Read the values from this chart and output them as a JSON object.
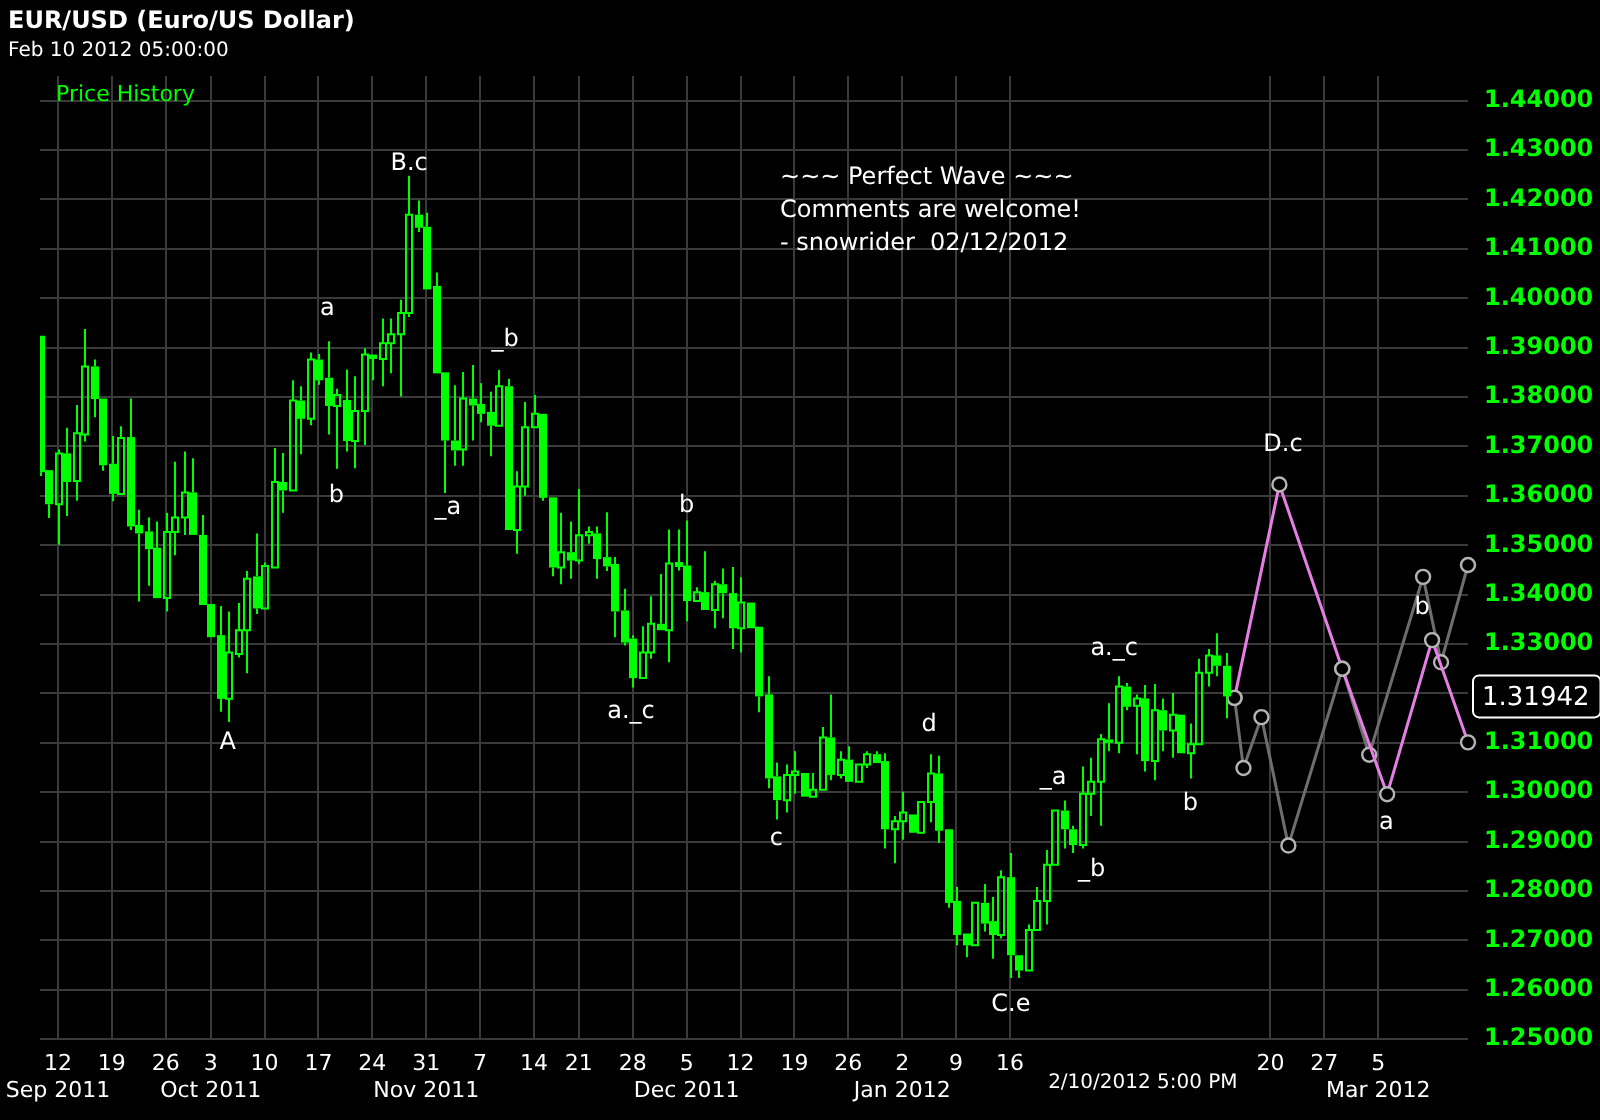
{
  "chart_data": {
    "type": "candlestick",
    "title": "EUR/USD (Euro/US Dollar)",
    "subtitle": "Feb 10 2012 05:00:00",
    "categories": [
      null,
      null,
      "12\nSep 2011",
      null,
      null,
      null,
      null,
      null,
      "19",
      null,
      null,
      null,
      null,
      null,
      "26",
      null,
      null,
      null,
      null,
      "3\nOct 2011",
      null,
      null,
      null,
      null,
      null,
      "10",
      null,
      null,
      null,
      null,
      null,
      "17",
      null,
      null,
      null,
      null,
      null,
      "24",
      null,
      null,
      null,
      null,
      null,
      "31\nNov 2011",
      null,
      null,
      null,
      null,
      null,
      "7",
      null,
      null,
      null,
      null,
      null,
      "14",
      null,
      null,
      null,
      null,
      "21",
      null,
      null,
      null,
      null,
      null,
      "28",
      null,
      null,
      null,
      null,
      null,
      "5\nDec 2011",
      null,
      null,
      null,
      null,
      null,
      "12",
      null,
      null,
      null,
      null,
      null,
      "19",
      null,
      null,
      null,
      null,
      null,
      "26",
      null,
      null,
      null,
      null,
      null,
      "2\nJan 2012",
      null,
      null,
      null,
      null,
      null,
      "9",
      null,
      null,
      null,
      null,
      null,
      "16",
      null,
      null,
      null,
      null,
      null,
      null,
      null,
      null,
      null,
      null,
      null,
      null,
      null,
      null,
      null,
      null,
      null,
      null,
      null,
      null,
      null,
      null,
      null,
      null,
      null,
      null,
      null,
      null,
      "20",
      null,
      null,
      null,
      null,
      null,
      "27",
      null,
      null,
      null,
      null,
      null,
      "5\nMar 2012",
      null,
      null,
      null,
      null,
      null,
      null,
      null,
      null,
      null,
      null
    ],
    "series": [
      {
        "name": "Price History",
        "color": "#00ff00",
        "ohlc": [
          [
            1.3924,
            1.3924,
            1.364,
            1.3648
          ],
          [
            1.3652,
            1.3652,
            1.3555,
            1.3583
          ],
          [
            1.3583,
            1.3694,
            1.3501,
            1.3686
          ],
          [
            1.3686,
            1.3738,
            1.3559,
            1.3628
          ],
          [
            1.363,
            1.3784,
            1.359,
            1.3727
          ],
          [
            1.3724,
            1.3938,
            1.371,
            1.3862
          ],
          [
            1.3862,
            1.3876,
            1.3759,
            1.3796
          ],
          [
            1.3797,
            1.3797,
            1.3651,
            1.3662
          ],
          [
            1.3665,
            1.3721,
            1.3589,
            1.3604
          ],
          [
            1.3604,
            1.3741,
            1.36,
            1.3717
          ],
          [
            1.3719,
            1.3797,
            1.3531,
            1.3538
          ],
          [
            1.3541,
            1.3572,
            1.3386,
            1.3524
          ],
          [
            1.3528,
            1.3556,
            1.3418,
            1.3492
          ],
          [
            1.3495,
            1.3548,
            1.3393,
            1.3393
          ],
          [
            1.3393,
            1.3566,
            1.3366,
            1.3527
          ],
          [
            1.3527,
            1.3669,
            1.348,
            1.3556
          ],
          [
            1.3556,
            1.369,
            1.3521,
            1.3607
          ],
          [
            1.3607,
            1.3676,
            1.3521,
            1.3521
          ],
          [
            1.3521,
            1.3561,
            1.3377,
            1.3379
          ],
          [
            1.3381,
            1.3383,
            1.3314,
            1.3314
          ],
          [
            1.3318,
            1.3377,
            1.3163,
            1.3189
          ],
          [
            1.3189,
            1.3366,
            1.3142,
            1.3283
          ],
          [
            1.328,
            1.3383,
            1.3273,
            1.3328
          ],
          [
            1.3328,
            1.3448,
            1.3241,
            1.3432
          ],
          [
            1.3437,
            1.3524,
            1.3361,
            1.3372
          ],
          [
            1.3372,
            1.3465,
            1.3372,
            1.3458
          ],
          [
            1.3455,
            1.3697,
            1.3455,
            1.3628
          ],
          [
            1.3628,
            1.3687,
            1.3566,
            1.3611
          ],
          [
            1.3611,
            1.3834,
            1.3611,
            1.3793
          ],
          [
            1.3793,
            1.3822,
            1.3684,
            1.3756
          ],
          [
            1.3756,
            1.389,
            1.3743,
            1.3876
          ],
          [
            1.3876,
            1.3887,
            1.3825,
            1.3834
          ],
          [
            1.3839,
            1.3913,
            1.3724,
            1.3782
          ],
          [
            1.3782,
            1.3817,
            1.3655,
            1.3804
          ],
          [
            1.3794,
            1.3856,
            1.369,
            1.3711
          ],
          [
            1.3711,
            1.3842,
            1.3656,
            1.3772
          ],
          [
            1.3772,
            1.3899,
            1.3703,
            1.3886
          ],
          [
            1.3886,
            1.389,
            1.3834,
            1.3877
          ],
          [
            1.3877,
            1.3959,
            1.3822,
            1.3909
          ],
          [
            1.3909,
            1.3959,
            1.3848,
            1.3927
          ],
          [
            1.3927,
            1.3997,
            1.3801,
            1.397
          ],
          [
            1.397,
            1.4248,
            1.3962,
            1.4169
          ],
          [
            1.4169,
            1.4198,
            1.4134,
            1.4143
          ],
          [
            1.4145,
            1.4173,
            1.4018,
            1.4018
          ],
          [
            1.4025,
            1.4052,
            1.3848,
            1.3848
          ],
          [
            1.385,
            1.385,
            1.3606,
            1.3712
          ],
          [
            1.3712,
            1.3824,
            1.3661,
            1.3692
          ],
          [
            1.3694,
            1.3851,
            1.3661,
            1.3797
          ],
          [
            1.3797,
            1.3865,
            1.3712,
            1.3783
          ],
          [
            1.3786,
            1.3828,
            1.3749,
            1.3766
          ],
          [
            1.377,
            1.3811,
            1.368,
            1.3742
          ],
          [
            1.3742,
            1.3855,
            1.3742,
            1.3822
          ],
          [
            1.3822,
            1.3837,
            1.3531,
            1.3531
          ],
          [
            1.3531,
            1.365,
            1.3483,
            1.3619
          ],
          [
            1.3619,
            1.379,
            1.36,
            1.3739
          ],
          [
            1.3739,
            1.3804,
            1.3735,
            1.3766
          ],
          [
            1.3766,
            1.377,
            1.359,
            1.3596
          ],
          [
            1.3597,
            1.3597,
            1.3437,
            1.3455
          ],
          [
            1.3455,
            1.3566,
            1.3421,
            1.3486
          ],
          [
            1.3486,
            1.3548,
            1.3432,
            1.3469
          ],
          [
            1.3469,
            1.3614,
            1.3462,
            1.352
          ],
          [
            1.352,
            1.3538,
            1.3503,
            1.3527
          ],
          [
            1.3524,
            1.3538,
            1.3432,
            1.3472
          ],
          [
            1.3476,
            1.3567,
            1.3448,
            1.3457
          ],
          [
            1.3462,
            1.3476,
            1.3314,
            1.3366
          ],
          [
            1.3368,
            1.3412,
            1.3297,
            1.3303
          ],
          [
            1.3311,
            1.3318,
            1.3212,
            1.3231
          ],
          [
            1.3231,
            1.3336,
            1.3231,
            1.3283
          ],
          [
            1.3283,
            1.3397,
            1.327,
            1.3341
          ],
          [
            1.3341,
            1.3442,
            1.3328,
            1.3328
          ],
          [
            1.3328,
            1.3532,
            1.3263,
            1.3463
          ],
          [
            1.3466,
            1.3532,
            1.3449,
            1.3456
          ],
          [
            1.3459,
            1.355,
            1.3346,
            1.3387
          ],
          [
            1.3387,
            1.3415,
            1.3383,
            1.3405
          ],
          [
            1.3405,
            1.3488,
            1.3366,
            1.3369
          ],
          [
            1.3369,
            1.3428,
            1.3332,
            1.3421
          ],
          [
            1.3421,
            1.3453,
            1.3352,
            1.3403
          ],
          [
            1.3403,
            1.3456,
            1.329,
            1.3332
          ],
          [
            1.3332,
            1.3435,
            1.3283,
            1.3384
          ],
          [
            1.3384,
            1.3384,
            1.3332,
            1.3332
          ],
          [
            1.3335,
            1.3335,
            1.3162,
            1.3194
          ],
          [
            1.3198,
            1.3235,
            1.3008,
            1.3028
          ],
          [
            1.3032,
            1.306,
            1.2945,
            1.2984
          ],
          [
            1.2984,
            1.3056,
            1.2959,
            1.3035
          ],
          [
            1.3035,
            1.3083,
            1.2997,
            1.3042
          ],
          [
            1.3039,
            1.3039,
            1.2987,
            1.2991
          ],
          [
            1.2991,
            1.3039,
            1.2991,
            1.3005
          ],
          [
            1.3005,
            1.3132,
            1.3005,
            1.3111
          ],
          [
            1.3111,
            1.3198,
            1.3024,
            1.3035
          ],
          [
            1.3035,
            1.3083,
            1.3028,
            1.3066
          ],
          [
            1.3066,
            1.3093,
            1.3021,
            1.3021
          ],
          [
            1.3021,
            1.3059,
            1.3021,
            1.3056
          ],
          [
            1.3056,
            1.3083,
            1.3049,
            1.3077
          ],
          [
            1.3077,
            1.3083,
            1.3056,
            1.3059
          ],
          [
            1.3063,
            1.3079,
            1.2886,
            1.2925
          ],
          [
            1.2925,
            1.2952,
            1.2856,
            1.2941
          ],
          [
            1.2941,
            1.3001,
            1.2904,
            1.2959
          ],
          [
            1.2955,
            1.2959,
            1.2918,
            1.2918
          ],
          [
            1.2918,
            1.298,
            1.2918,
            1.298
          ],
          [
            1.298,
            1.3077,
            1.2939,
            1.3038
          ],
          [
            1.3038,
            1.3074,
            1.2897,
            1.2922
          ],
          [
            1.2925,
            1.2925,
            1.2766,
            1.2776
          ],
          [
            1.278,
            1.2808,
            1.269,
            1.2711
          ],
          [
            1.2714,
            1.2714,
            1.2666,
            1.269
          ],
          [
            1.269,
            1.278,
            1.269,
            1.2776
          ],
          [
            1.2776,
            1.2814,
            1.2718,
            1.2734
          ],
          [
            1.2739,
            1.2788,
            1.2663,
            1.2711
          ],
          [
            1.2711,
            1.2842,
            1.2704,
            1.2828
          ],
          [
            1.2828,
            1.2877,
            1.2624,
            1.267
          ],
          [
            1.267,
            1.2672,
            1.2624,
            1.2639
          ],
          [
            1.2639,
            1.2732,
            1.2635,
            1.2721
          ],
          [
            1.2721,
            1.2808,
            1.2718,
            1.278
          ],
          [
            1.278,
            1.2883,
            1.2732,
            1.2853
          ],
          [
            1.2853,
            1.2966,
            1.2849,
            1.2963
          ],
          [
            1.2963,
            1.2983,
            1.2886,
            1.2925
          ],
          [
            1.2925,
            1.2932,
            1.2877,
            1.2893
          ],
          [
            1.2893,
            1.3052,
            1.2886,
            1.2997
          ],
          [
            1.2997,
            1.307,
            1.2952,
            1.3021
          ],
          [
            1.3021,
            1.3118,
            1.2932,
            1.3107
          ],
          [
            1.3107,
            1.318,
            1.3083,
            1.31
          ],
          [
            1.31,
            1.3235,
            1.3079,
            1.3214
          ],
          [
            1.3214,
            1.3221,
            1.3166,
            1.3173
          ],
          [
            1.3175,
            1.3198,
            1.3077,
            1.319
          ],
          [
            1.319,
            1.3217,
            1.3042,
            1.3063
          ],
          [
            1.3063,
            1.3219,
            1.3024,
            1.3166
          ],
          [
            1.3166,
            1.319,
            1.3083,
            1.3125
          ],
          [
            1.3125,
            1.3201,
            1.307,
            1.3157
          ],
          [
            1.3157,
            1.316,
            1.3079,
            1.3079
          ],
          [
            1.3079,
            1.3139,
            1.3028,
            1.3097
          ],
          [
            1.3097,
            1.327,
            1.3097,
            1.3242
          ],
          [
            1.3242,
            1.329,
            1.3214,
            1.3277
          ],
          [
            1.3277,
            1.3322,
            1.3235,
            1.3256
          ],
          [
            1.3256,
            1.3282,
            1.315,
            1.3194
          ],
          null,
          null,
          null,
          null,
          null,
          null,
          null,
          null,
          null,
          null,
          null,
          null,
          null,
          null,
          null,
          null,
          null,
          null,
          null,
          null,
          null,
          null,
          null,
          null,
          null,
          null,
          null
        ]
      },
      {
        "type": "line",
        "color": "#e67ee6",
        "marker": "circle",
        "values": [
          null,
          null,
          null,
          null,
          null,
          null,
          null,
          null,
          null,
          null,
          null,
          null,
          null,
          null,
          null,
          null,
          null,
          null,
          null,
          null,
          null,
          null,
          null,
          null,
          null,
          null,
          null,
          null,
          null,
          null,
          null,
          null,
          null,
          null,
          null,
          null,
          null,
          null,
          null,
          null,
          null,
          null,
          null,
          null,
          null,
          null,
          null,
          null,
          null,
          null,
          null,
          null,
          null,
          null,
          null,
          null,
          null,
          null,
          null,
          null,
          null,
          null,
          null,
          null,
          null,
          null,
          null,
          null,
          null,
          null,
          null,
          null,
          null,
          null,
          null,
          null,
          null,
          null,
          null,
          null,
          null,
          null,
          null,
          null,
          null,
          null,
          null,
          null,
          null,
          null,
          null,
          null,
          null,
          null,
          null,
          null,
          null,
          null,
          null,
          null,
          null,
          null,
          null,
          null,
          null,
          null,
          null,
          null,
          null,
          null,
          null,
          null,
          null,
          null,
          null,
          null,
          null,
          null,
          null,
          null,
          null,
          null,
          null,
          null,
          null,
          null,
          null,
          null,
          null,
          null,
          null,
          null,
          null,
          1.3191,
          null,
          null,
          null,
          null,
          1.3623,
          null,
          null,
          null,
          null,
          null,
          null,
          1.325,
          null,
          null,
          null,
          null,
          1.2996,
          null,
          null,
          null,
          null,
          1.3308,
          null,
          null,
          null,
          1.3101
        ]
      },
      {
        "type": "line",
        "color": "#6e6e6e",
        "marker": "circle",
        "values": [
          null,
          null,
          null,
          null,
          null,
          null,
          null,
          null,
          null,
          null,
          null,
          null,
          null,
          null,
          null,
          null,
          null,
          null,
          null,
          null,
          null,
          null,
          null,
          null,
          null,
          null,
          null,
          null,
          null,
          null,
          null,
          null,
          null,
          null,
          null,
          null,
          null,
          null,
          null,
          null,
          null,
          null,
          null,
          null,
          null,
          null,
          null,
          null,
          null,
          null,
          null,
          null,
          null,
          null,
          null,
          null,
          null,
          null,
          null,
          null,
          null,
          null,
          null,
          null,
          null,
          null,
          null,
          null,
          null,
          null,
          null,
          null,
          null,
          null,
          null,
          null,
          null,
          null,
          null,
          null,
          null,
          null,
          null,
          null,
          null,
          null,
          null,
          null,
          null,
          null,
          null,
          null,
          null,
          null,
          null,
          null,
          null,
          null,
          null,
          null,
          null,
          null,
          null,
          null,
          null,
          null,
          null,
          null,
          null,
          null,
          null,
          null,
          null,
          null,
          null,
          null,
          null,
          null,
          null,
          null,
          null,
          null,
          null,
          null,
          null,
          null,
          null,
          null,
          null,
          null,
          null,
          null,
          null,
          1.3191,
          1.3049,
          null,
          1.3152,
          null,
          null,
          1.2892,
          null,
          null,
          null,
          null,
          null,
          1.325,
          null,
          null,
          1.3076,
          null,
          null,
          null,
          null,
          null,
          1.3436,
          null,
          1.3263,
          null,
          null,
          1.346
        ]
      }
    ],
    "ylim": [
      1.25,
      1.445
    ],
    "yticks": [
      {
        "value": 1.25,
        "label": "1.25000"
      },
      {
        "value": 1.26,
        "label": "1.26000"
      },
      {
        "value": 1.27,
        "label": "1.27000"
      },
      {
        "value": 1.28,
        "label": "1.28000"
      },
      {
        "value": 1.29,
        "label": "1.29000"
      },
      {
        "value": 1.3,
        "label": "1.30000"
      },
      {
        "value": 1.31,
        "label": "1.31000"
      },
      {
        "value": 1.32,
        "label": null
      },
      {
        "value": 1.33,
        "label": "1.33000"
      },
      {
        "value": 1.34,
        "label": "1.34000"
      },
      {
        "value": 1.35,
        "label": "1.35000"
      },
      {
        "value": 1.36,
        "label": "1.36000"
      },
      {
        "value": 1.37,
        "label": "1.37000"
      },
      {
        "value": 1.38,
        "label": "1.38000"
      },
      {
        "value": 1.39,
        "label": "1.39000"
      },
      {
        "value": 1.4,
        "label": "1.40000"
      },
      {
        "value": 1.41,
        "label": "1.41000"
      },
      {
        "value": 1.42,
        "label": "1.42000"
      },
      {
        "value": 1.43,
        "label": "1.43000"
      },
      {
        "value": 1.44,
        "label": "1.44000"
      }
    ],
    "grid": true,
    "legend": "top left",
    "annotations": [
      "A",
      "a",
      "b",
      "B.c",
      "_a",
      "_b",
      "a._c",
      "b",
      "c",
      "d",
      "C.e",
      "_a",
      "_b",
      "a._c",
      "b",
      "D.c",
      "a",
      "b",
      "~~~ Perfect Wave ~~~\nComments are welcome!\n- snowrider  02/12/2012",
      "2/10/2012 5:00 PM",
      "1.31942"
    ]
  }
}
